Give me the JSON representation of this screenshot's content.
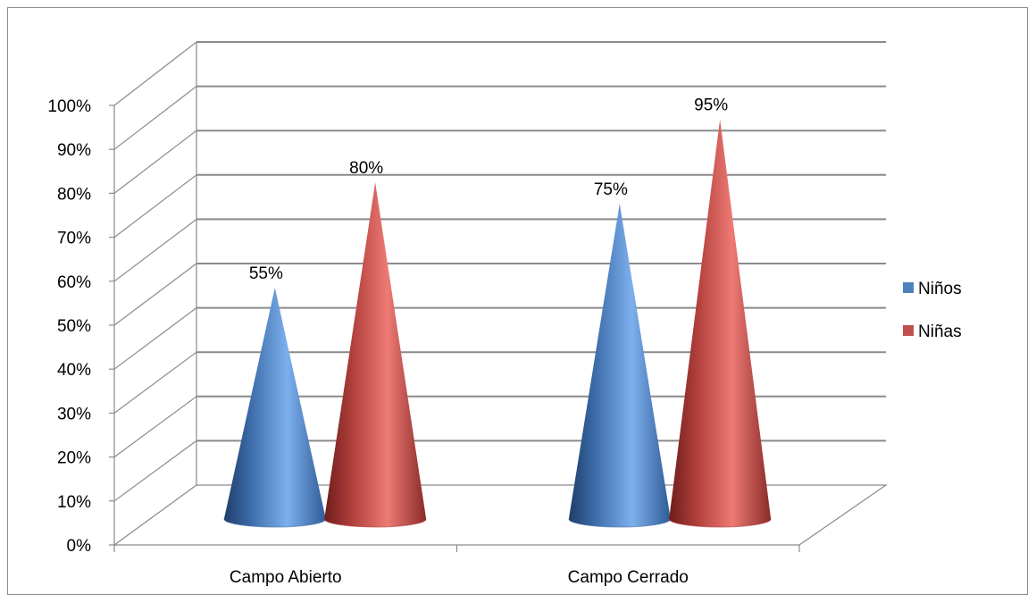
{
  "chart_data": {
    "type": "bar",
    "style": "3d-cone",
    "categories": [
      "Campo Abierto",
      "Campo Cerrado"
    ],
    "series": [
      {
        "name": "Niños",
        "values": [
          55,
          75
        ],
        "labels": [
          "55%",
          "75%"
        ],
        "color": "#4f81bd"
      },
      {
        "name": "Niñas",
        "values": [
          80,
          95
        ],
        "labels": [
          "80%",
          "95%"
        ],
        "color": "#c0504d"
      }
    ],
    "y_ticks": [
      "0%",
      "10%",
      "20%",
      "30%",
      "40%",
      "50%",
      "60%",
      "70%",
      "80%",
      "90%",
      "100%"
    ],
    "ylim": [
      0,
      100
    ],
    "grid": true,
    "legend_position": "right"
  }
}
